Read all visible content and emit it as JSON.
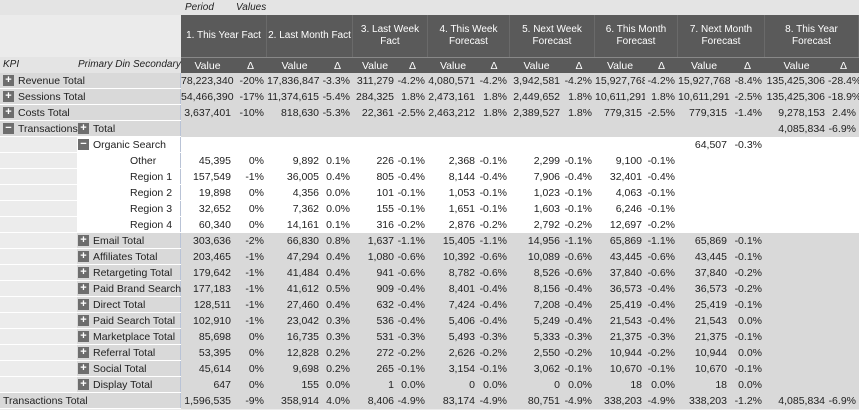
{
  "header": {
    "period": "Period",
    "values": "Values",
    "kpi": "KPI",
    "dims": "Primary Din Secondary",
    "value": "Value",
    "delta": "Δ",
    "periods": [
      "1. This Year Fact",
      "2. Last Month Fact",
      "3. Last Week Fact",
      "4. This Week Forecast",
      "5. Next Week Forecast",
      "6. This Month Forecast",
      "7. Next Month Forecast",
      "8. This Year Forecast"
    ]
  },
  "colors": {
    "gray_row": "#d9d9d9",
    "header": "#5a5a5a",
    "red_strong": "#e57f77",
    "green": "#5cbd80"
  },
  "rows": [
    {
      "label": "Revenue Total",
      "icon": "plus",
      "pos": "kpi",
      "bg": "#d9d9d9",
      "cells": [
        [
          "78,223,340",
          "-20%",
          "r2"
        ],
        [
          "17,836,847",
          "-3.3%",
          "r1"
        ],
        [
          "311,279",
          "-4.2%",
          "r2"
        ],
        [
          "4,080,571",
          "-4.2%",
          "r2"
        ],
        [
          "3,942,581",
          "-4.2%",
          "r2"
        ],
        [
          "15,927,768",
          "-4.2%",
          "r2"
        ],
        [
          "15,927,768",
          "-8.4%",
          "r2"
        ],
        [
          "135,425,306",
          "-28.4%",
          "r3"
        ]
      ]
    },
    {
      "label": "Sessions Total",
      "icon": "plus",
      "pos": "kpi",
      "bg": "#d9d9d9",
      "cells": [
        [
          "54,466,390",
          "-17%",
          "r2"
        ],
        [
          "11,374,615",
          "-5.4%",
          "r3"
        ],
        [
          "284,325",
          "1.8%",
          "g"
        ],
        [
          "2,473,161",
          "1.8%",
          "g"
        ],
        [
          "2,449,652",
          "1.8%",
          "g"
        ],
        [
          "10,611,291",
          "1.8%",
          "g"
        ],
        [
          "10,611,291",
          "-2.5%",
          "r0"
        ],
        [
          "135,425,306",
          "-18.9%",
          "r2"
        ]
      ]
    },
    {
      "label": "Costs Total",
      "icon": "plus",
      "pos": "kpi",
      "bg": "#d9d9d9",
      "cells": [
        [
          "3,637,401",
          "-10%",
          "r1"
        ],
        [
          "818,630",
          "-5.3%",
          "r2"
        ],
        [
          "22,361",
          "-2.5%",
          "r1"
        ],
        [
          "2,463,212",
          "1.8%",
          "g"
        ],
        [
          "2,389,527",
          "1.8%",
          "g"
        ],
        [
          "779,315",
          "-2.5%",
          "r1"
        ],
        [
          "779,315",
          "-1.4%",
          "r0"
        ],
        [
          "9,278,153",
          "2.4%",
          "g"
        ]
      ]
    },
    {
      "label": "Transactions",
      "icon": "minus",
      "pos": "kpi",
      "sublabel": "Total",
      "subicon": "plus",
      "bg": "#d9d9d9",
      "cells": [
        [
          "",
          ""
        ],
        [
          "",
          ""
        ],
        [
          "",
          ""
        ],
        [
          "",
          ""
        ],
        [
          "",
          ""
        ],
        [
          "",
          ""
        ],
        [
          "",
          ""
        ],
        [
          "4,085,834",
          "-6.9%",
          "r1"
        ]
      ]
    },
    {
      "label": "Organic Search",
      "icon": "minus",
      "pos": "dim",
      "bg": "#fff",
      "cells": [
        [
          "",
          ""
        ],
        [
          "",
          ""
        ],
        [
          "",
          ""
        ],
        [
          "",
          ""
        ],
        [
          "",
          ""
        ],
        [
          "",
          ""
        ],
        [
          "64,507",
          "-0.3%",
          "r0"
        ],
        [
          "",
          ""
        ]
      ]
    },
    {
      "label": "Other",
      "pos": "sec",
      "bg": "#fff",
      "cells": [
        [
          "45,395",
          "0%"
        ],
        [
          "9,892",
          "0.1%"
        ],
        [
          "226",
          "-0.1%"
        ],
        [
          "2,368",
          "-0.1%"
        ],
        [
          "2,299",
          "-0.1%"
        ],
        [
          "9,100",
          "-0.1%"
        ],
        [
          "",
          ""
        ],
        [
          "",
          ""
        ]
      ]
    },
    {
      "label": "Region 1",
      "pos": "sec",
      "bg": "#fff",
      "cells": [
        [
          "157,549",
          "-1%",
          "r0"
        ],
        [
          "36,005",
          "0.4%",
          "g1"
        ],
        [
          "805",
          "-0.4%",
          "r0"
        ],
        [
          "8,144",
          "-0.4%",
          "r0"
        ],
        [
          "7,906",
          "-0.4%",
          "r0"
        ],
        [
          "32,401",
          "-0.4%",
          "r0"
        ],
        [
          "",
          ""
        ],
        [
          "",
          ""
        ]
      ]
    },
    {
      "label": "Region 2",
      "pos": "sec",
      "bg": "#fff",
      "cells": [
        [
          "19,898",
          "0%"
        ],
        [
          "4,356",
          "0.0%"
        ],
        [
          "101",
          "-0.1%"
        ],
        [
          "1,053",
          "-0.1%"
        ],
        [
          "1,023",
          "-0.1%"
        ],
        [
          "4,063",
          "-0.1%"
        ],
        [
          "",
          ""
        ],
        [
          "",
          ""
        ]
      ]
    },
    {
      "label": "Region 3",
      "pos": "sec",
      "bg": "#fff",
      "cells": [
        [
          "32,652",
          "0%"
        ],
        [
          "7,362",
          "0.0%"
        ],
        [
          "155",
          "-0.1%"
        ],
        [
          "1,651",
          "-0.1%"
        ],
        [
          "1,603",
          "-0.1%"
        ],
        [
          "6,246",
          "-0.1%"
        ],
        [
          "",
          ""
        ],
        [
          "",
          ""
        ]
      ]
    },
    {
      "label": "Region 4",
      "pos": "sec",
      "bg": "#fff",
      "cells": [
        [
          "60,340",
          "0%"
        ],
        [
          "14,161",
          "0.1%"
        ],
        [
          "316",
          "-0.2%"
        ],
        [
          "2,876",
          "-0.2%"
        ],
        [
          "2,792",
          "-0.2%"
        ],
        [
          "12,697",
          "-0.2%"
        ],
        [
          "",
          ""
        ],
        [
          "",
          ""
        ]
      ]
    },
    {
      "label": "Email Total",
      "icon": "plus",
      "pos": "dim",
      "bg": "#d9d9d9",
      "cells": [
        [
          "303,636",
          "-2%",
          "r0"
        ],
        [
          "66,830",
          "0.8%",
          "g1"
        ],
        [
          "1,637",
          "-1.1%",
          "r1"
        ],
        [
          "15,405",
          "-1.1%",
          "r1"
        ],
        [
          "14,956",
          "-1.1%",
          "r1"
        ],
        [
          "65,869",
          "-1.1%",
          "r1"
        ],
        [
          "65,869",
          "-0.1%",
          "w"
        ],
        [
          "",
          ""
        ]
      ]
    },
    {
      "label": "Affiliates Total",
      "icon": "plus",
      "pos": "dim",
      "bg": "#d9d9d9",
      "cells": [
        [
          "203,465",
          "-1%",
          "r0"
        ],
        [
          "47,294",
          "0.4%",
          "g1"
        ],
        [
          "1,080",
          "-0.6%",
          "r0"
        ],
        [
          "10,392",
          "-0.6%",
          "r0"
        ],
        [
          "10,089",
          "-0.6%",
          "r0"
        ],
        [
          "43,445",
          "-0.6%",
          "r0"
        ],
        [
          "43,445",
          "-0.1%",
          "w"
        ],
        [
          "",
          ""
        ]
      ]
    },
    {
      "label": "Retargeting Total",
      "icon": "plus",
      "pos": "dim",
      "bg": "#d9d9d9",
      "cells": [
        [
          "179,642",
          "-1%",
          "r0"
        ],
        [
          "41,484",
          "0.4%",
          "g1"
        ],
        [
          "941",
          "-0.6%",
          "r0"
        ],
        [
          "8,782",
          "-0.6%",
          "r0"
        ],
        [
          "8,526",
          "-0.6%",
          "r0"
        ],
        [
          "37,840",
          "-0.6%",
          "r0"
        ],
        [
          "37,840",
          "-0.2%",
          "w"
        ],
        [
          "",
          ""
        ]
      ]
    },
    {
      "label": "Paid Brand Search",
      "icon": "plus",
      "pos": "dim",
      "bg": "#d9d9d9",
      "cells": [
        [
          "177,183",
          "-1%",
          "r0"
        ],
        [
          "41,612",
          "0.5%",
          "g1"
        ],
        [
          "909",
          "-0.4%",
          "r0"
        ],
        [
          "8,401",
          "-0.4%",
          "r0"
        ],
        [
          "8,156",
          "-0.4%",
          "r0"
        ],
        [
          "36,573",
          "-0.4%",
          "r0"
        ],
        [
          "36,573",
          "-0.2%",
          "w"
        ],
        [
          "",
          ""
        ]
      ]
    },
    {
      "label": "Direct Total",
      "icon": "plus",
      "pos": "dim",
      "bg": "#d9d9d9",
      "cells": [
        [
          "128,511",
          "-1%",
          "r0"
        ],
        [
          "27,460",
          "0.4%",
          "g1"
        ],
        [
          "632",
          "-0.4%",
          "r0"
        ],
        [
          "7,424",
          "-0.4%",
          "r0"
        ],
        [
          "7,208",
          "-0.4%",
          "r0"
        ],
        [
          "25,419",
          "-0.4%",
          "r0"
        ],
        [
          "25,419",
          "-0.1%",
          "w"
        ],
        [
          "",
          ""
        ]
      ]
    },
    {
      "label": "Paid Search Total",
      "icon": "plus",
      "pos": "dim",
      "bg": "#d9d9d9",
      "cells": [
        [
          "102,910",
          "-1%",
          "r0"
        ],
        [
          "23,042",
          "0.3%",
          "g1"
        ],
        [
          "536",
          "-0.4%",
          "r0"
        ],
        [
          "5,406",
          "-0.4%",
          "r0"
        ],
        [
          "5,249",
          "-0.4%",
          "r0"
        ],
        [
          "21,543",
          "-0.4%",
          "r0"
        ],
        [
          "21,543",
          "0.0%",
          "w"
        ],
        [
          "",
          ""
        ]
      ]
    },
    {
      "label": "Marketplace Total",
      "icon": "plus",
      "pos": "dim",
      "bg": "#d9d9d9",
      "cells": [
        [
          "85,698",
          "0%",
          "w"
        ],
        [
          "16,735",
          "0.3%",
          "g1"
        ],
        [
          "531",
          "-0.3%",
          "r0"
        ],
        [
          "5,493",
          "-0.3%",
          "r0"
        ],
        [
          "5,333",
          "-0.3%",
          "r0"
        ],
        [
          "21,375",
          "-0.3%",
          "r0"
        ],
        [
          "21,375",
          "-0.1%",
          "w"
        ],
        [
          "",
          ""
        ]
      ]
    },
    {
      "label": "Referral Total",
      "icon": "plus",
      "pos": "dim",
      "bg": "#d9d9d9",
      "cells": [
        [
          "53,395",
          "0%",
          "w"
        ],
        [
          "12,828",
          "0.2%",
          "g1"
        ],
        [
          "272",
          "-0.2%",
          "r0"
        ],
        [
          "2,626",
          "-0.2%",
          "r0"
        ],
        [
          "2,550",
          "-0.2%",
          "r0"
        ],
        [
          "10,944",
          "-0.2%",
          "r0"
        ],
        [
          "10,944",
          "0.0%",
          "w"
        ],
        [
          "",
          ""
        ]
      ]
    },
    {
      "label": "Social Total",
      "icon": "plus",
      "pos": "dim",
      "bg": "#d9d9d9",
      "cells": [
        [
          "45,614",
          "0%",
          "w"
        ],
        [
          "9,698",
          "0.2%",
          "g1"
        ],
        [
          "265",
          "-0.1%",
          "w"
        ],
        [
          "3,154",
          "-0.1%",
          "w"
        ],
        [
          "3,062",
          "-0.1%",
          "w"
        ],
        [
          "10,670",
          "-0.1%",
          "w"
        ],
        [
          "10,670",
          "-0.1%",
          "w"
        ],
        [
          "",
          ""
        ]
      ]
    },
    {
      "label": "Display Total",
      "icon": "plus",
      "pos": "dim",
      "bg": "#d9d9d9",
      "cells": [
        [
          "647",
          "0%",
          "w"
        ],
        [
          "155",
          "0.0%",
          "w"
        ],
        [
          "1",
          "0.0%",
          "w"
        ],
        [
          "0",
          "0.0%",
          "w"
        ],
        [
          "0",
          "0.0%",
          "w"
        ],
        [
          "18",
          "0.0%",
          "w"
        ],
        [
          "18",
          "0.0%",
          "g"
        ],
        [
          "",
          ""
        ]
      ]
    },
    {
      "label": "Transactions Total",
      "pos": "kpi",
      "bg": "#d9d9d9",
      "cells": [
        [
          "1,596,535",
          "-9%",
          "r1"
        ],
        [
          "358,914",
          "4.0%",
          "g"
        ],
        [
          "8,406",
          "-4.9%",
          "r3"
        ],
        [
          "83,174",
          "-4.9%",
          "r3"
        ],
        [
          "80,751",
          "-4.9%",
          "r3"
        ],
        [
          "338,203",
          "-4.9%",
          "r3"
        ],
        [
          "338,203",
          "-1.2%",
          "r0"
        ],
        [
          "4,085,834",
          "-6.9%",
          "r1"
        ]
      ]
    }
  ]
}
